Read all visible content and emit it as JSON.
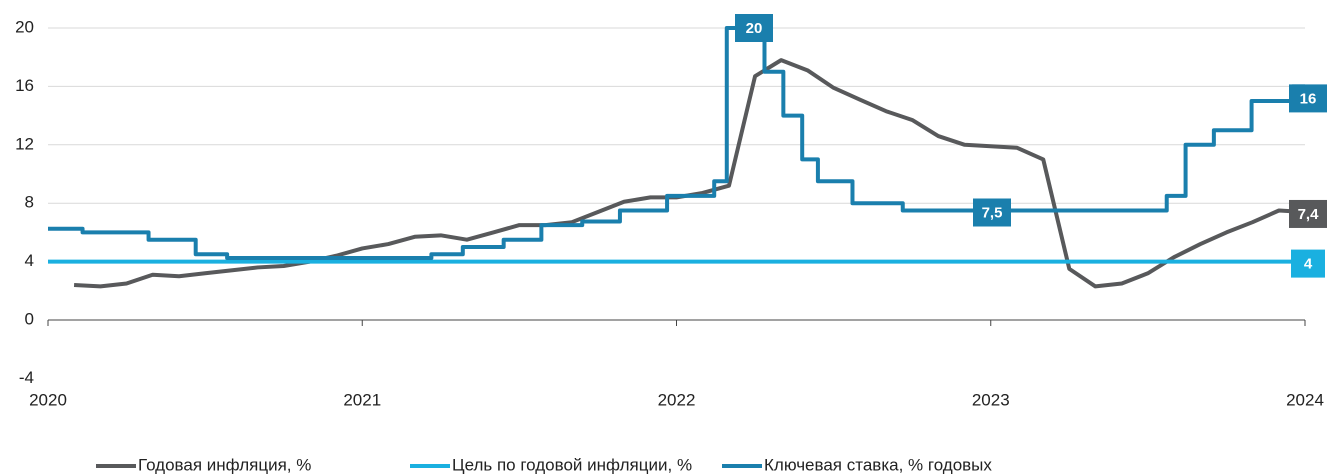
{
  "chart_data": {
    "type": "line",
    "xlim": [
      2020,
      2024
    ],
    "xticks": [
      2020,
      2021,
      2022,
      2023,
      2024
    ],
    "ylim": [
      -4,
      20
    ],
    "yticks": [
      -4,
      0,
      4,
      8,
      12,
      16,
      20
    ],
    "grid": true,
    "legend": "bottom",
    "series": [
      {
        "name": "Годовая инфляция, %",
        "color": "#58595b",
        "step": false,
        "x": [
          2020.083,
          2020.167,
          2020.25,
          2020.333,
          2020.417,
          2020.5,
          2020.583,
          2020.667,
          2020.75,
          2020.833,
          2020.917,
          2021.0,
          2021.083,
          2021.167,
          2021.25,
          2021.333,
          2021.417,
          2021.5,
          2021.583,
          2021.667,
          2021.75,
          2021.833,
          2021.917,
          2022.0,
          2022.083,
          2022.167,
          2022.25,
          2022.333,
          2022.417,
          2022.5,
          2022.583,
          2022.667,
          2022.75,
          2022.833,
          2022.917,
          2023.0,
          2023.083,
          2023.167,
          2023.25,
          2023.333,
          2023.417,
          2023.5,
          2023.583,
          2023.667,
          2023.75,
          2023.833,
          2023.917,
          2024.0
        ],
        "values": [
          2.4,
          2.3,
          2.5,
          3.1,
          3.0,
          3.2,
          3.4,
          3.6,
          3.7,
          4.0,
          4.4,
          4.9,
          5.2,
          5.7,
          5.8,
          5.5,
          6.0,
          6.5,
          6.5,
          6.7,
          7.4,
          8.1,
          8.4,
          8.4,
          8.7,
          9.2,
          16.7,
          17.8,
          17.1,
          15.9,
          15.1,
          14.3,
          13.7,
          12.6,
          12.0,
          11.9,
          11.8,
          11.0,
          3.5,
          2.3,
          2.5,
          3.2,
          4.3,
          5.2,
          6.0,
          6.7,
          7.5,
          7.4
        ]
      },
      {
        "name": "Цель по годовой инфляции, %",
        "color": "#1ab0e0",
        "step": false,
        "x": [
          2020,
          2024
        ],
        "values": [
          4,
          4
        ]
      },
      {
        "name": "Ключевая ставка, % годовых",
        "color": "#1a7fad",
        "step": true,
        "x": [
          2020.0,
          2020.11,
          2020.32,
          2020.47,
          2020.57,
          2021.22,
          2021.32,
          2021.45,
          2021.57,
          2021.7,
          2021.82,
          2021.97,
          2022.12,
          2022.16,
          2022.28,
          2022.34,
          2022.4,
          2022.45,
          2022.56,
          2022.72,
          2023.56,
          2023.62,
          2023.71,
          2023.83,
          2023.96,
          2024.0
        ],
        "values": [
          6.25,
          6.0,
          5.5,
          4.5,
          4.25,
          4.5,
          5.0,
          5.5,
          6.5,
          6.75,
          7.5,
          8.5,
          9.5,
          20,
          17,
          14,
          11,
          9.5,
          8,
          7.5,
          8.5,
          12,
          13,
          15,
          16,
          16
        ]
      }
    ],
    "annotations": [
      {
        "label": "20",
        "value": 20,
        "color": "#1a7fad"
      },
      {
        "label": "16",
        "value": 16,
        "color": "#1a7fad"
      },
      {
        "label": "7,5",
        "value": 7.5,
        "color": "#1a7fad"
      },
      {
        "label": "4",
        "value": 4,
        "color": "#1ab0e0"
      },
      {
        "label": "7,4",
        "value": 7.4,
        "color": "#58595b"
      }
    ]
  }
}
